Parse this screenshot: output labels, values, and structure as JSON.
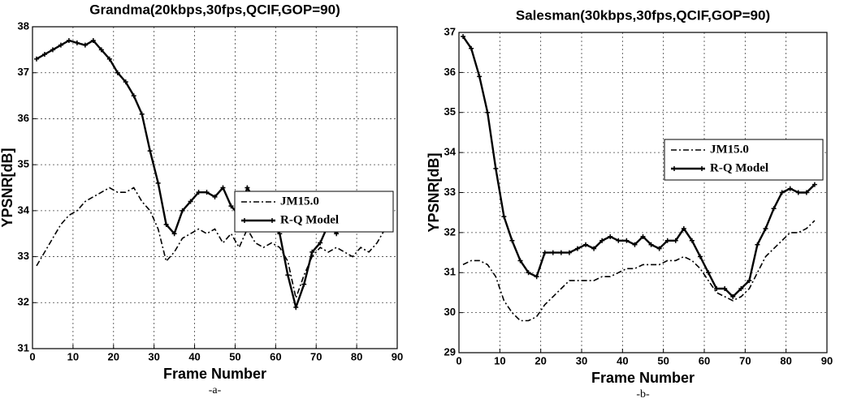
{
  "chart_data": [
    {
      "type": "line",
      "title": "Grandma(20kbps,30fps,QCIF,GOP=90)",
      "x_label": "Frame Number",
      "y_label": "YPSNR[dB]",
      "caption": "-a-",
      "xlim": [
        0,
        90
      ],
      "xticks": [
        0,
        10,
        20,
        30,
        40,
        50,
        60,
        70,
        80,
        90
      ],
      "ylim": [
        31,
        38
      ],
      "yticks": [
        31,
        32,
        33,
        34,
        35,
        36,
        37,
        38
      ],
      "grid": true,
      "legend": "upper right",
      "x": [
        1,
        3,
        5,
        7,
        9,
        11,
        13,
        15,
        17,
        19,
        21,
        23,
        25,
        27,
        29,
        31,
        33,
        35,
        37,
        39,
        41,
        43,
        45,
        47,
        49,
        51,
        53,
        55,
        57,
        59,
        61,
        63,
        65,
        67,
        69,
        71,
        73,
        75,
        77,
        79,
        81,
        83,
        85,
        87
      ],
      "series": [
        {
          "name": "JM15.0",
          "color": "#000000",
          "line_style": "dashdot",
          "values": [
            32.8,
            33.1,
            33.4,
            33.7,
            33.9,
            34.0,
            34.2,
            34.3,
            34.4,
            34.5,
            34.4,
            34.4,
            34.5,
            34.2,
            34.0,
            33.6,
            32.9,
            33.1,
            33.4,
            33.5,
            33.6,
            33.5,
            33.6,
            33.3,
            33.5,
            33.2,
            33.6,
            33.3,
            33.2,
            33.3,
            33.2,
            32.9,
            32.1,
            32.6,
            33.0,
            33.2,
            33.1,
            33.2,
            33.1,
            33.0,
            33.2,
            33.1,
            33.3,
            33.6
          ]
        },
        {
          "name": "R-Q Model",
          "color": "#000000",
          "line_style": "solid",
          "marker": "plus",
          "values": [
            37.3,
            37.4,
            37.5,
            37.6,
            37.7,
            37.65,
            37.6,
            37.7,
            37.5,
            37.3,
            37.0,
            36.8,
            36.5,
            36.1,
            35.3,
            34.6,
            33.7,
            33.5,
            34.0,
            34.2,
            34.4,
            34.4,
            34.3,
            34.5,
            34.1,
            33.9,
            34.5,
            34.2,
            33.9,
            33.7,
            33.5,
            32.6,
            31.9,
            32.4,
            33.1,
            33.3,
            33.7,
            33.5,
            33.8,
            33.9,
            33.9,
            34.0,
            34.05,
            34.1
          ]
        }
      ]
    },
    {
      "type": "line",
      "title": "Salesman(30kbps,30fps,QCIF,GOP=90)",
      "x_label": "Frame Number",
      "y_label": "YPSNR[dB]",
      "caption": "-b-",
      "xlim": [
        0,
        90
      ],
      "xticks": [
        0,
        10,
        20,
        30,
        40,
        50,
        60,
        70,
        80,
        90
      ],
      "ylim": [
        29,
        37
      ],
      "yticks": [
        29,
        30,
        31,
        32,
        33,
        34,
        35,
        36,
        37
      ],
      "grid": true,
      "legend": "upper right",
      "x": [
        1,
        3,
        5,
        7,
        9,
        11,
        13,
        15,
        17,
        19,
        21,
        23,
        25,
        27,
        29,
        31,
        33,
        35,
        37,
        39,
        41,
        43,
        45,
        47,
        49,
        51,
        53,
        55,
        57,
        59,
        61,
        63,
        65,
        67,
        69,
        71,
        73,
        75,
        77,
        79,
        81,
        83,
        85,
        87
      ],
      "series": [
        {
          "name": "JM15.0",
          "color": "#000000",
          "line_style": "dashdot",
          "values": [
            31.2,
            31.3,
            31.3,
            31.2,
            30.9,
            30.3,
            30.0,
            29.8,
            29.8,
            29.9,
            30.2,
            30.4,
            30.6,
            30.8,
            30.8,
            30.8,
            30.8,
            30.9,
            30.9,
            31.0,
            31.1,
            31.1,
            31.2,
            31.2,
            31.2,
            31.3,
            31.3,
            31.4,
            31.3,
            31.1,
            30.8,
            30.5,
            30.4,
            30.3,
            30.4,
            30.6,
            31.0,
            31.4,
            31.6,
            31.8,
            32.0,
            32.0,
            32.1,
            32.3
          ]
        },
        {
          "name": "R-Q Model",
          "color": "#000000",
          "line_style": "solid",
          "marker": "plus",
          "values": [
            36.9,
            36.6,
            35.9,
            35.0,
            33.6,
            32.4,
            31.8,
            31.3,
            31.0,
            30.9,
            31.5,
            31.5,
            31.5,
            31.5,
            31.6,
            31.7,
            31.6,
            31.8,
            31.9,
            31.8,
            31.8,
            31.7,
            31.9,
            31.7,
            31.6,
            31.8,
            31.8,
            32.1,
            31.8,
            31.4,
            31.0,
            30.6,
            30.6,
            30.4,
            30.6,
            30.8,
            31.7,
            32.1,
            32.6,
            33.0,
            33.1,
            33.0,
            33.0,
            33.2
          ]
        }
      ]
    }
  ]
}
